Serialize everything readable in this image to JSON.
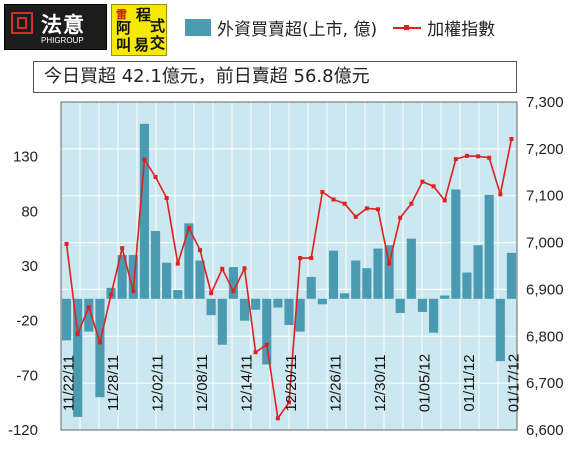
{
  "logos": {
    "phi_name": "法意",
    "phi_sub": "PHIGROUP",
    "program_chars": [
      "阿",
      "程",
      "式",
      "叫",
      "易",
      "交"
    ],
    "program_small": "雷"
  },
  "summary_text": "今日買超 42.1億元，前日賣超 56.8億元",
  "chart_data": {
    "type": "bar+line",
    "legend": [
      {
        "name": "外資買賣超(上市, 億)",
        "color": "#4a9ab1",
        "kind": "bar"
      },
      {
        "name": "加權指數",
        "color": "#e02020",
        "kind": "line"
      }
    ],
    "legend_position": "top",
    "left_axis": {
      "ticks": [
        130,
        80,
        30,
        -20,
        -70,
        -120
      ],
      "range": [
        -120,
        180
      ]
    },
    "right_axis": {
      "ticks": [
        "7,300",
        "7,200",
        "7,100",
        "7,000",
        "6,900",
        "6,800",
        "6,700",
        "6,600"
      ],
      "range": [
        6600,
        7300
      ]
    },
    "x_labels": [
      "11/22/11",
      "11/28/11",
      "12/02/11",
      "12/08/11",
      "12/14/11",
      "12/20/11",
      "12/26/11",
      "12/30/11",
      "01/05/12",
      "01/11/12",
      "01/17/12"
    ],
    "bars": [
      -38,
      -108,
      -30,
      -90,
      10,
      40,
      40,
      160,
      62,
      33,
      8,
      69,
      35,
      -15,
      -42,
      29,
      -20,
      -10,
      -60,
      -8,
      -24,
      -30,
      20,
      -5,
      44,
      5,
      35,
      28,
      46,
      49,
      -13,
      55,
      -12,
      -31,
      3,
      100,
      24,
      49,
      95,
      -57,
      42
    ],
    "index_line": [
      6997,
      6805,
      6862,
      6787,
      6889,
      6988,
      6896,
      7177,
      7140,
      7095,
      6955,
      7031,
      6984,
      6892,
      6944,
      6896,
      6945,
      6766,
      6782,
      6625,
      6659,
      6967,
      6967,
      7108,
      7092,
      7083,
      7055,
      7073,
      7071,
      6955,
      7053,
      7083,
      7130,
      7120,
      7090,
      7178,
      7185,
      7184,
      7181,
      7103,
      7221
    ],
    "grid": true,
    "plot_background": "#cbe7ef"
  }
}
